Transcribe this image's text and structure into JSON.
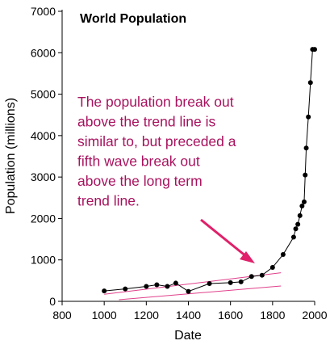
{
  "chart_data": {
    "type": "line",
    "title": "World Population",
    "xlabel": "Date",
    "ylabel": "Population (millions)",
    "xlim": [
      800,
      2000
    ],
    "ylim": [
      0,
      7000
    ],
    "xticks": [
      800,
      1000,
      1200,
      1400,
      1600,
      1800,
      2000
    ],
    "yticks": [
      0,
      1000,
      2000,
      3000,
      4000,
      5000,
      6000,
      7000
    ],
    "grid": false,
    "series": [
      {
        "name": "",
        "x": [
          1000,
          1100,
          1200,
          1250,
          1300,
          1340,
          1400,
          1500,
          1600,
          1650,
          1700,
          1750,
          1800,
          1850,
          1900,
          1910,
          1920,
          1930,
          1940,
          1950,
          1955,
          1960,
          1970,
          1980,
          1990,
          2000
        ],
        "y": [
          250,
          300,
          360,
          400,
          360,
          440,
          240,
          430,
          450,
          470,
          600,
          630,
          820,
          1130,
          1550,
          1750,
          1860,
          2070,
          2300,
          2400,
          3050,
          3700,
          4450,
          5280,
          6080,
          6080
        ],
        "color": "#000000"
      }
    ],
    "trend_lines": [
      {
        "x": [
          1000,
          1840
        ],
        "y": [
          170,
          690
        ],
        "color": "#e0408a"
      },
      {
        "x": [
          1070,
          1840
        ],
        "y": [
          40,
          370
        ],
        "color": "#e0408a"
      }
    ],
    "annotation": {
      "lines": [
        "The population break out",
        "above the trend line is",
        "similar to, but preceded a",
        "fifth wave break out",
        "above the long term",
        "trend line."
      ],
      "color": "#a8125e",
      "arrow_color": "#e0206a"
    }
  }
}
